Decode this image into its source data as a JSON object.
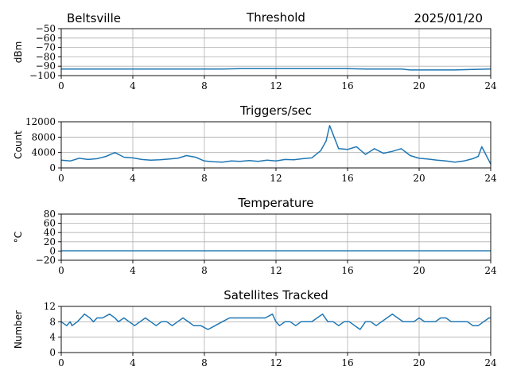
{
  "header": {
    "station": "Beltsville",
    "date": "2025/01/20"
  },
  "colors": {
    "line": "#1f77b4",
    "grid": "#b0b0b0",
    "axis": "#000000"
  },
  "chart_data": [
    {
      "type": "line",
      "title": "Threshold",
      "xlabel": "",
      "ylabel": "dBm",
      "xlim": [
        0,
        24
      ],
      "ylim": [
        -100,
        -50
      ],
      "xticks": [
        0,
        4,
        8,
        12,
        16,
        20,
        24
      ],
      "yticks": [
        -100,
        -90,
        -80,
        -70,
        -60,
        -50
      ],
      "ytick_labels": [
        "−100",
        "−90",
        "−80",
        "−70",
        "−60",
        "−50"
      ],
      "grid": true,
      "series": [
        {
          "x": [
            0,
            1,
            2,
            3,
            4,
            5,
            6,
            7,
            8,
            9,
            10,
            11,
            12,
            13,
            14,
            15,
            16,
            17,
            18,
            19,
            19.5,
            20,
            21,
            22,
            23,
            24
          ],
          "values": [
            -93,
            -93,
            -93,
            -93,
            -93,
            -93,
            -93,
            -93,
            -93,
            -93,
            -92.5,
            -92.5,
            -92.5,
            -92.5,
            -92.5,
            -92.5,
            -92.5,
            -93,
            -93,
            -93,
            -94,
            -94,
            -94,
            -94,
            -93.5,
            -93
          ]
        }
      ]
    },
    {
      "type": "line",
      "title": "Triggers/sec",
      "xlabel": "",
      "ylabel": "Count",
      "xlim": [
        0,
        24
      ],
      "ylim": [
        0,
        12000
      ],
      "xticks": [
        0,
        4,
        8,
        12,
        16,
        20,
        24
      ],
      "yticks": [
        0,
        4000,
        8000,
        12000
      ],
      "ytick_labels": [
        "0",
        "4000",
        "8000",
        "12000"
      ],
      "grid": true,
      "series": [
        {
          "x": [
            0,
            0.5,
            1,
            1.5,
            2,
            2.5,
            3,
            3.5,
            4,
            4.5,
            5,
            5.5,
            6,
            6.5,
            7,
            7.5,
            8,
            8.5,
            9,
            9.5,
            10,
            10.5,
            11,
            11.5,
            12,
            12.5,
            13,
            13.5,
            14,
            14.5,
            14.8,
            15,
            15.5,
            16,
            16.5,
            17,
            17.5,
            18,
            18.5,
            19,
            19.5,
            20,
            20.5,
            21,
            21.5,
            22,
            22.5,
            23,
            23.3,
            23.5,
            24
          ],
          "values": [
            2000,
            1800,
            2500,
            2200,
            2400,
            3000,
            4000,
            2800,
            2600,
            2200,
            2000,
            2100,
            2300,
            2500,
            3200,
            2800,
            1800,
            1600,
            1500,
            1800,
            1700,
            1900,
            1700,
            2000,
            1800,
            2200,
            2100,
            2400,
            2600,
            4500,
            7000,
            11000,
            5000,
            4800,
            5500,
            3500,
            5000,
            3800,
            4300,
            5000,
            3200,
            2500,
            2300,
            2000,
            1800,
            1500,
            1800,
            2400,
            3000,
            5500,
            1000
          ]
        }
      ]
    },
    {
      "type": "line",
      "title": "Temperature",
      "xlabel": "",
      "ylabel": "°C",
      "xlim": [
        0,
        24
      ],
      "ylim": [
        -20,
        80
      ],
      "xticks": [
        0,
        4,
        8,
        12,
        16,
        20,
        24
      ],
      "yticks": [
        -20,
        0,
        20,
        40,
        60,
        80
      ],
      "ytick_labels": [
        "−20",
        "0",
        "20",
        "40",
        "60",
        "80"
      ],
      "grid": true,
      "series": [
        {
          "x": [
            0,
            24
          ],
          "values": [
            0.5,
            0.5
          ]
        }
      ]
    },
    {
      "type": "line",
      "title": "Satellites Tracked",
      "xlabel": "",
      "ylabel": "Number",
      "xlim": [
        0,
        24
      ],
      "ylim": [
        0,
        12
      ],
      "xticks": [
        0,
        4,
        8,
        12,
        16,
        20,
        24
      ],
      "yticks": [
        0,
        4,
        8,
        12
      ],
      "ytick_labels": [
        "0",
        "4",
        "8",
        "12"
      ],
      "grid": true,
      "series": [
        {
          "x": [
            0,
            0.3,
            0.5,
            0.6,
            0.9,
            1.1,
            1.3,
            1.6,
            1.8,
            2.0,
            2.3,
            2.7,
            3.0,
            3.2,
            3.5,
            3.8,
            4.1,
            4.4,
            4.7,
            5.0,
            5.3,
            5.6,
            5.9,
            6.2,
            6.5,
            6.8,
            7.1,
            7.4,
            7.8,
            8.2,
            8.6,
            9.0,
            9.4,
            9.8,
            10.2,
            10.6,
            11.0,
            11.4,
            11.8,
            12.0,
            12.2,
            12.5,
            12.8,
            13.1,
            13.4,
            13.7,
            14.0,
            14.3,
            14.6,
            14.9,
            15.2,
            15.5,
            15.8,
            16.1,
            16.4,
            16.7,
            17.0,
            17.3,
            17.6,
            17.9,
            18.2,
            18.5,
            18.8,
            19.1,
            19.4,
            19.7,
            20.0,
            20.3,
            20.6,
            20.9,
            21.2,
            21.5,
            21.8,
            22.1,
            22.4,
            22.7,
            23.0,
            23.3,
            23.6,
            23.9,
            24
          ],
          "values": [
            8,
            7,
            8,
            7,
            8,
            9,
            10,
            9,
            8,
            9,
            9,
            10,
            9,
            8,
            9,
            8,
            7,
            8,
            9,
            8,
            7,
            8,
            8,
            7,
            8,
            9,
            8,
            7,
            7,
            6,
            7,
            8,
            9,
            9,
            9,
            9,
            9,
            9,
            10,
            8,
            7,
            8,
            8,
            7,
            8,
            8,
            8,
            9,
            10,
            8,
            8,
            7,
            8,
            8,
            7,
            6,
            8,
            8,
            7,
            8,
            9,
            10,
            9,
            8,
            8,
            8,
            9,
            8,
            8,
            8,
            9,
            9,
            8,
            8,
            8,
            8,
            7,
            7,
            8,
            9,
            9
          ]
        }
      ]
    }
  ]
}
